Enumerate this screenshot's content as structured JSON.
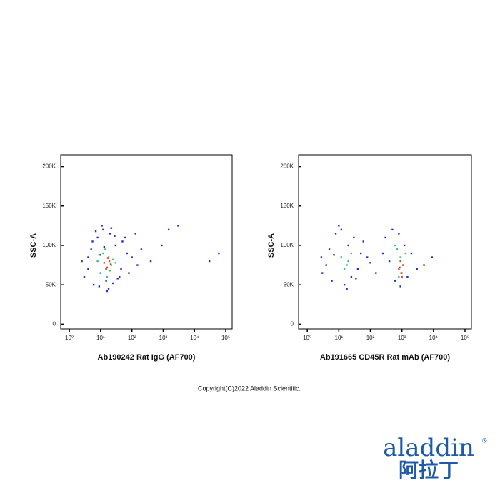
{
  "chart_data": [
    {
      "type": "scatter",
      "xlabel": "Ab190242 Rat IgG (AF700)",
      "ylabel": "SSC-A",
      "xscale": "log",
      "xlim": [
        0.53,
        160000
      ],
      "ylim": [
        -6000,
        215000
      ],
      "xticks": [
        {
          "value": 1,
          "label": "10⁰"
        },
        {
          "value": 10,
          "label": "10¹"
        },
        {
          "value": 100,
          "label": "10²"
        },
        {
          "value": 1000,
          "label": "10³"
        },
        {
          "value": 10000,
          "label": "10⁴"
        },
        {
          "value": 100000,
          "label": "10⁵"
        }
      ],
      "yticks": [
        0,
        {
          "value": 50000,
          "label": "50K"
        },
        {
          "value": 100000,
          "label": "100K"
        },
        {
          "value": 150000,
          "label": "150K"
        },
        {
          "value": 200000,
          "label": "200K"
        }
      ],
      "series": [
        {
          "color": "#1f2fd0",
          "x": [
            3,
            5,
            8,
            4,
            12,
            20,
            30,
            50,
            70,
            100,
            150,
            6,
            9,
            15,
            25,
            40,
            2.5,
            7,
            11,
            18,
            35,
            60,
            200,
            400,
            900,
            3000,
            30000,
            60000,
            4,
            10,
            22,
            45,
            80,
            13,
            16,
            28,
            5.5,
            9.5,
            130,
            1500
          ],
          "values": [
            60000,
            95000,
            110000,
            70000,
            120000,
            115000,
            100000,
            105000,
            90000,
            85000,
            75000,
            50000,
            48000,
            55000,
            52000,
            60000,
            80000,
            118000,
            125000,
            45000,
            58000,
            110000,
            95000,
            80000,
            100000,
            125000,
            80000,
            90000,
            85000,
            65000,
            122000,
            70000,
            65000,
            98000,
            42000,
            112000,
            105000,
            88000,
            115000,
            120000
          ]
        },
        {
          "color": "#3cc07a",
          "x": [
            8,
            12,
            15,
            18,
            22,
            10,
            14,
            20,
            25,
            9,
            16,
            30
          ],
          "values": [
            80000,
            90000,
            70000,
            85000,
            75000,
            65000,
            95000,
            68000,
            82000,
            88000,
            60000,
            78000
          ]
        },
        {
          "color": "#e8401c",
          "x": [
            13,
            16,
            19,
            15,
            21,
            17
          ],
          "values": [
            78000,
            72000,
            80000,
            70000,
            76000,
            84000
          ]
        }
      ]
    },
    {
      "type": "scatter",
      "xlabel": "Ab191665 CD45R Rat mAb (AF700)",
      "ylabel": "SSC-A",
      "xscale": "log",
      "xlim": [
        0.53,
        160000
      ],
      "ylim": [
        -6000,
        215000
      ],
      "xticks": [
        {
          "value": 1,
          "label": "10⁰"
        },
        {
          "value": 10,
          "label": "10¹"
        },
        {
          "value": 100,
          "label": "10²"
        },
        {
          "value": 1000,
          "label": "10³"
        },
        {
          "value": 10000,
          "label": "10⁴"
        },
        {
          "value": 100000,
          "label": "10⁵"
        }
      ],
      "yticks": [
        0,
        {
          "value": 50000,
          "label": "50K"
        },
        {
          "value": 100000,
          "label": "100K"
        },
        {
          "value": 150000,
          "label": "150K"
        },
        {
          "value": 200000,
          "label": "200K"
        }
      ],
      "series": [
        {
          "color": "#1f2fd0",
          "x": [
            3,
            5,
            8,
            12,
            20,
            30,
            50,
            80,
            4,
            6,
            15,
            25,
            40,
            60,
            10,
            2.8,
            7,
            18,
            35,
            100,
            300,
            500,
            800,
            1200,
            2000,
            3000,
            600,
            900,
            1500,
            400,
            700,
            5000,
            9000,
            250,
            150
          ],
          "values": [
            65000,
            95000,
            115000,
            120000,
            100000,
            110000,
            90000,
            85000,
            75000,
            55000,
            50000,
            60000,
            70000,
            105000,
            125000,
            85000,
            88000,
            45000,
            58000,
            78000,
            110000,
            120000,
            115000,
            100000,
            90000,
            70000,
            55000,
            48000,
            60000,
            80000,
            95000,
            75000,
            85000,
            90000,
            65000
          ]
        },
        {
          "color": "#3cc07a",
          "x": [
            12,
            18,
            25,
            15,
            20,
            700,
            900,
            1100,
            800,
            1000,
            1300,
            600
          ],
          "values": [
            85000,
            75000,
            90000,
            70000,
            80000,
            95000,
            85000,
            75000,
            60000,
            65000,
            90000,
            100000
          ]
        },
        {
          "color": "#e8401c",
          "x": [
            800,
            950,
            1100,
            900,
            1000,
            850
          ],
          "values": [
            70000,
            65000,
            75000,
            80000,
            60000,
            72000
          ]
        }
      ]
    }
  ],
  "footer": "Copyright(C)2022 Aladdin Scientific.",
  "logo": {
    "text": "aladdin",
    "mark": "®",
    "chinese": "阿拉丁"
  }
}
